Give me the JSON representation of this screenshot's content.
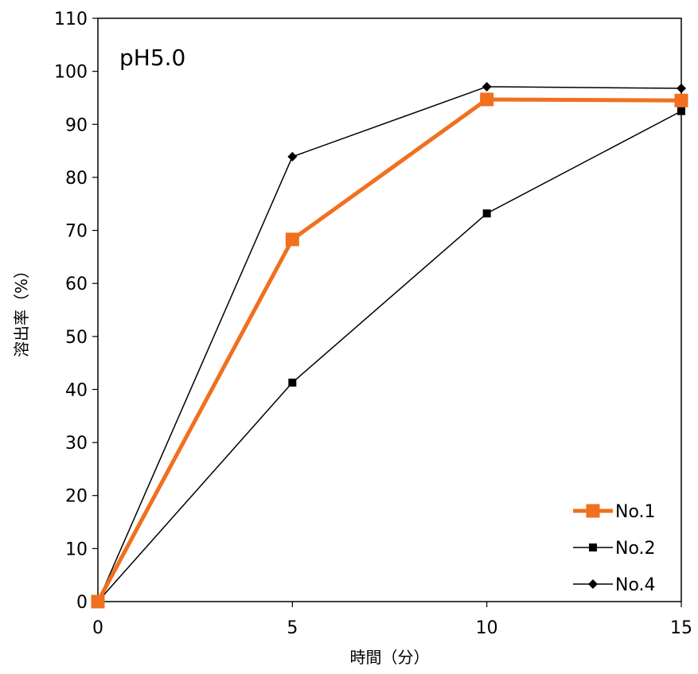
{
  "chart_data": {
    "type": "line",
    "annotation": "pH5.0",
    "xlabel": "時間（分）",
    "ylabel": "溶出率（%）",
    "x": [
      0,
      5,
      10,
      15
    ],
    "xlim": [
      0,
      15
    ],
    "ylim": [
      0,
      110
    ],
    "xticks": [
      "0",
      "5",
      "10",
      "15"
    ],
    "yticks": [
      "0",
      "10",
      "20",
      "30",
      "40",
      "50",
      "60",
      "70",
      "80",
      "90",
      "100",
      "110"
    ],
    "grid": false,
    "legend_position": "bottom-right",
    "series": [
      {
        "name": "No.1",
        "values": [
          0,
          68.3,
          94.7,
          94.5
        ],
        "color": "#F07020",
        "marker": "square",
        "emphasis": true
      },
      {
        "name": "No.2",
        "values": [
          0,
          41.3,
          73.2,
          92.5
        ],
        "color": "#000000",
        "marker": "square",
        "emphasis": false
      },
      {
        "name": "No.4",
        "values": [
          0,
          83.9,
          97.1,
          96.8
        ],
        "color": "#000000",
        "marker": "diamond",
        "emphasis": false
      }
    ]
  }
}
